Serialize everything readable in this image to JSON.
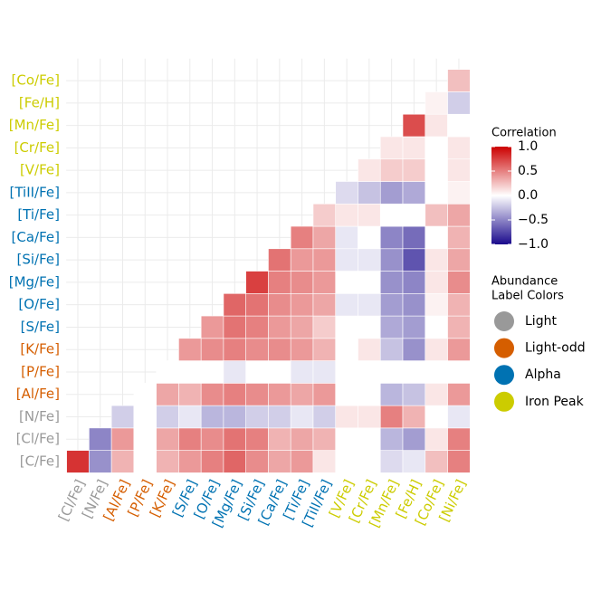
{
  "chart_data": {
    "type": "heatmap",
    "x": [
      "[Cl/Fe]",
      "[N/Fe]",
      "[Al/Fe]",
      "[P/Fe]",
      "[K/Fe]",
      "[S/Fe]",
      "[O/Fe]",
      "[Mg/Fe]",
      "[Si/Fe]",
      "[Ca/Fe]",
      "[Ti/Fe]",
      "[TiII/Fe]",
      "[V/Fe]",
      "[Cr/Fe]",
      "[Mn/Fe]",
      "[Fe/H]",
      "[Co/Fe]",
      "[Ni/Fe]"
    ],
    "y": [
      "[C/Fe]",
      "[Cl/Fe]",
      "[N/Fe]",
      "[Al/Fe]",
      "[P/Fe]",
      "[K/Fe]",
      "[S/Fe]",
      "[O/Fe]",
      "[Mg/Fe]",
      "[Si/Fe]",
      "[Ca/Fe]",
      "[Ti/Fe]",
      "[TiII/Fe]",
      "[V/Fe]",
      "[Cr/Fe]",
      "[Mn/Fe]",
      "[Fe/H]",
      "[Co/Fe]"
    ],
    "x_groups": [
      0,
      0,
      1,
      1,
      1,
      2,
      2,
      2,
      2,
      2,
      2,
      2,
      3,
      3,
      3,
      3,
      3,
      3
    ],
    "y_groups": [
      0,
      0,
      0,
      1,
      1,
      1,
      2,
      2,
      2,
      2,
      2,
      2,
      2,
      3,
      3,
      3,
      3,
      3
    ],
    "values": [
      [
        0.8,
        -0.45,
        0.3,
        0,
        0.3,
        0.4,
        0.5,
        0.6,
        0.45,
        0.35,
        0.4,
        0.1,
        0,
        0,
        -0.15,
        -0.1,
        0.25,
        0.5
      ],
      [
        null,
        -0.5,
        0.4,
        0,
        0.35,
        0.5,
        0.45,
        0.55,
        0.5,
        0.3,
        0.35,
        0.3,
        0,
        0,
        -0.3,
        -0.4,
        0.1,
        0.5
      ],
      [
        null,
        null,
        -0.2,
        0,
        -0.2,
        -0.1,
        -0.3,
        -0.3,
        -0.2,
        -0.2,
        -0.1,
        -0.2,
        0.1,
        0.1,
        0.5,
        0.3,
        0,
        -0.1
      ],
      [
        null,
        null,
        null,
        0,
        0.35,
        0.3,
        0.45,
        0.5,
        0.45,
        0.4,
        0.35,
        0.4,
        0,
        0,
        -0.3,
        -0.25,
        0.1,
        0.4
      ],
      [
        null,
        null,
        null,
        null,
        0,
        0,
        0,
        -0.1,
        0,
        0,
        -0.1,
        -0.1,
        0,
        0,
        0,
        0,
        0,
        0
      ],
      [
        null,
        null,
        null,
        null,
        null,
        0.4,
        0.45,
        0.5,
        0.45,
        0.45,
        0.4,
        0.3,
        0,
        0.1,
        -0.25,
        -0.45,
        0.1,
        0.4
      ],
      [
        null,
        null,
        null,
        null,
        null,
        null,
        0.4,
        0.55,
        0.5,
        0.4,
        0.35,
        0.2,
        0,
        0,
        -0.35,
        -0.4,
        0,
        0.3
      ],
      [
        null,
        null,
        null,
        null,
        null,
        null,
        null,
        0.6,
        0.55,
        0.45,
        0.4,
        0.35,
        -0.1,
        -0.1,
        -0.4,
        -0.45,
        0.05,
        0.3
      ],
      [
        null,
        null,
        null,
        null,
        null,
        null,
        null,
        null,
        0.75,
        0.5,
        0.45,
        0.4,
        0,
        0,
        -0.45,
        -0.5,
        0.1,
        0.45
      ],
      [
        null,
        null,
        null,
        null,
        null,
        null,
        null,
        null,
        null,
        0.55,
        0.4,
        0.4,
        -0.1,
        -0.1,
        -0.45,
        -0.7,
        0.1,
        0.35
      ],
      [
        null,
        null,
        null,
        null,
        null,
        null,
        null,
        null,
        null,
        null,
        0.5,
        0.35,
        -0.1,
        0,
        -0.5,
        -0.6,
        0,
        0.3
      ],
      [
        null,
        null,
        null,
        null,
        null,
        null,
        null,
        null,
        null,
        null,
        null,
        0.2,
        0.1,
        0.1,
        0,
        0,
        0.25,
        0.35
      ],
      [
        null,
        null,
        null,
        null,
        null,
        null,
        null,
        null,
        null,
        null,
        null,
        null,
        -0.15,
        -0.25,
        -0.4,
        -0.35,
        0,
        0.05
      ],
      [
        null,
        null,
        null,
        null,
        null,
        null,
        null,
        null,
        null,
        null,
        null,
        null,
        null,
        0.1,
        0.2,
        0.2,
        0,
        0.1
      ],
      [
        null,
        null,
        null,
        null,
        null,
        null,
        null,
        null,
        null,
        null,
        null,
        null,
        null,
        null,
        0.1,
        0.1,
        0,
        0.1
      ],
      [
        null,
        null,
        null,
        null,
        null,
        null,
        null,
        null,
        null,
        null,
        null,
        null,
        null,
        null,
        null,
        0.7,
        0.1,
        0
      ],
      [
        null,
        null,
        null,
        null,
        null,
        null,
        null,
        null,
        null,
        null,
        null,
        null,
        null,
        null,
        null,
        null,
        0.05,
        -0.2
      ],
      [
        null,
        null,
        null,
        null,
        null,
        null,
        null,
        null,
        null,
        null,
        null,
        null,
        null,
        null,
        null,
        null,
        null,
        0.25
      ]
    ],
    "colorbar": {
      "title": "Correlation",
      "lim": [
        -1,
        1
      ],
      "ticks": [
        {
          "value": 1,
          "label": "1.0"
        },
        0.5,
        {
          "value": 0,
          "label": "0.0"
        },
        {
          "value": -0.5,
          "label": "−0.5"
        },
        {
          "value": -1,
          "label": "−1.0"
        }
      ],
      "low": "#1a0a8c",
      "mid": "#ffffff",
      "high": "#cc0000"
    },
    "label_legend": {
      "title": [
        "Abundance",
        " Label Colors"
      ],
      "items": [
        {
          "name": "Light",
          "color": "#999999"
        },
        {
          "name": "Light-odd",
          "color": "#d55e00"
        },
        {
          "name": "Alpha",
          "color": "#0072b2"
        },
        {
          "name": "Iron Peak",
          "color": "#cccc00"
        }
      ]
    },
    "grid": true
  }
}
